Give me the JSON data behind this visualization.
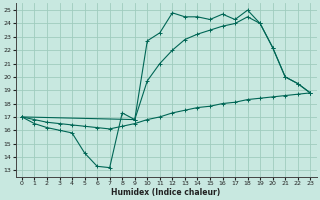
{
  "xlabel": "Humidex (Indice chaleur)",
  "xlim": [
    -0.5,
    23.5
  ],
  "ylim": [
    12.5,
    25.5
  ],
  "yticks": [
    13,
    14,
    15,
    16,
    17,
    18,
    19,
    20,
    21,
    22,
    23,
    24,
    25
  ],
  "xticks": [
    0,
    1,
    2,
    3,
    4,
    5,
    6,
    7,
    8,
    9,
    10,
    11,
    12,
    13,
    14,
    15,
    16,
    17,
    18,
    19,
    20,
    21,
    22,
    23
  ],
  "bg_color": "#c8e8e0",
  "grid_color": "#a0ccbe",
  "line_color": "#006655",
  "series1_x": [
    0,
    1,
    2,
    3,
    4,
    5,
    6,
    7,
    8,
    9,
    10,
    11,
    12,
    13,
    14,
    15,
    16,
    17,
    18,
    19,
    20,
    21,
    22,
    23
  ],
  "series1_y": [
    17.0,
    16.5,
    16.2,
    16.0,
    15.8,
    14.3,
    13.3,
    13.2,
    17.3,
    16.8,
    22.7,
    23.3,
    24.8,
    24.5,
    24.5,
    24.3,
    24.7,
    24.3,
    25.0,
    24.0,
    22.2,
    20.0,
    19.5,
    18.8
  ],
  "series2_x": [
    0,
    9,
    10,
    11,
    12,
    13,
    14,
    15,
    16,
    17,
    18,
    19,
    20,
    21,
    22,
    23
  ],
  "series2_y": [
    17.0,
    16.8,
    19.7,
    21.0,
    22.0,
    22.8,
    23.2,
    23.5,
    23.8,
    24.0,
    24.5,
    24.0,
    22.2,
    20.0,
    19.5,
    18.8
  ],
  "series3_x": [
    0,
    1,
    2,
    3,
    4,
    5,
    6,
    7,
    8,
    9,
    10,
    11,
    12,
    13,
    14,
    15,
    16,
    17,
    18,
    19,
    20,
    21,
    22,
    23
  ],
  "series3_y": [
    17.0,
    16.8,
    16.6,
    16.5,
    16.4,
    16.3,
    16.2,
    16.1,
    16.3,
    16.5,
    16.8,
    17.0,
    17.3,
    17.5,
    17.7,
    17.8,
    18.0,
    18.1,
    18.3,
    18.4,
    18.5,
    18.6,
    18.7,
    18.8
  ]
}
